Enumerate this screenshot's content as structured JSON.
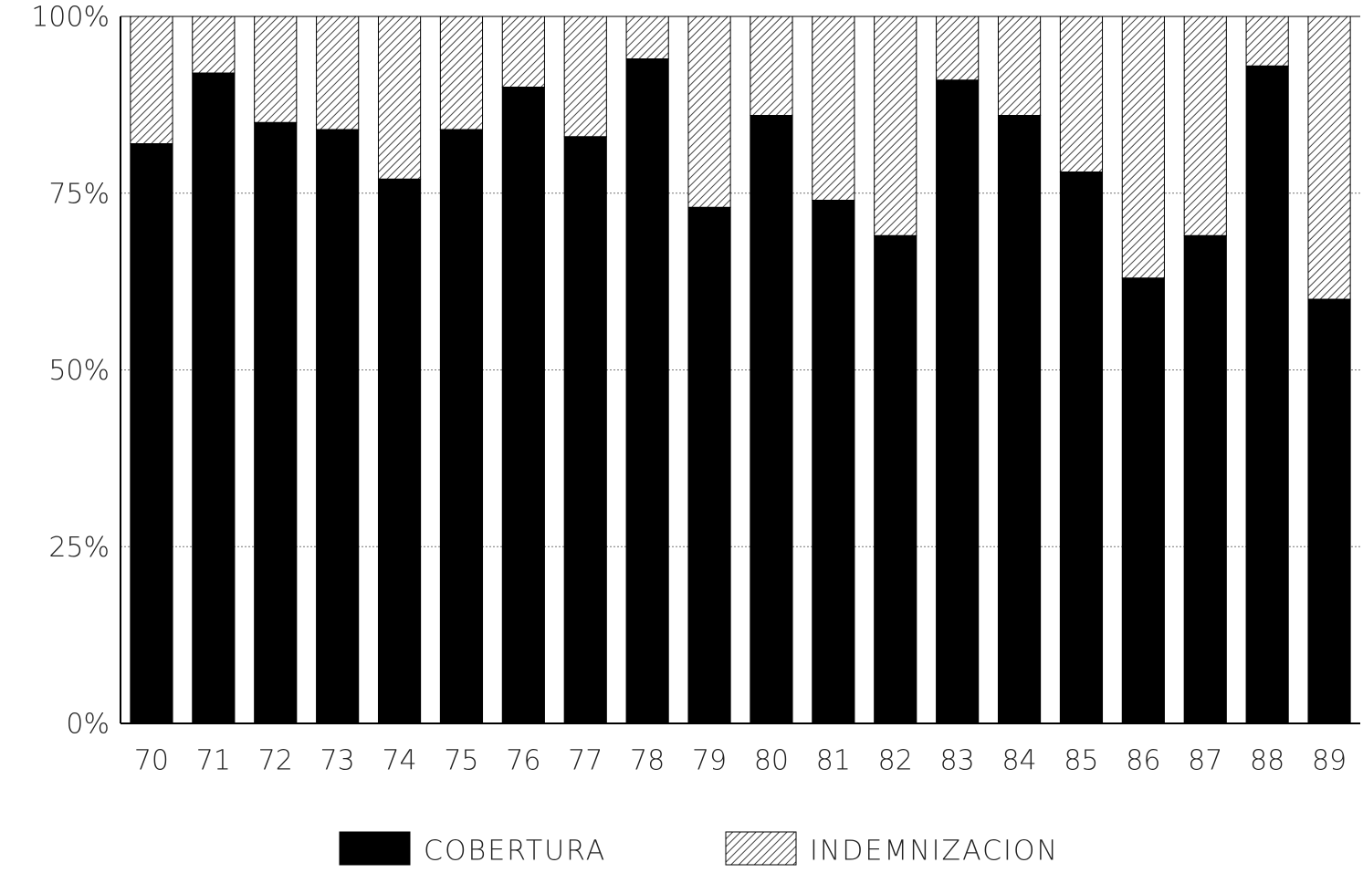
{
  "chart_data": {
    "type": "stacked_bar",
    "categories": [
      "70",
      "71",
      "72",
      "73",
      "74",
      "75",
      "76",
      "77",
      "78",
      "79",
      "80",
      "81",
      "82",
      "83",
      "84",
      "85",
      "86",
      "87",
      "88",
      "89"
    ],
    "series": [
      {
        "name": "COBERTURA",
        "color": "#000000",
        "pattern": "solid",
        "values": [
          82,
          92,
          85,
          84,
          77,
          84,
          90,
          83,
          94,
          73,
          86,
          74,
          69,
          91,
          86,
          78,
          63,
          69,
          93,
          60
        ]
      },
      {
        "name": "INDEMNIZACION",
        "color": "#444444",
        "pattern": "hatch",
        "values": [
          18,
          8,
          15,
          16,
          23,
          16,
          10,
          17,
          6,
          27,
          14,
          26,
          31,
          9,
          14,
          22,
          37,
          31,
          7,
          40
        ]
      }
    ],
    "ylim": [
      0,
      100
    ],
    "yticks": [
      {
        "value": 0,
        "label": "0%"
      },
      {
        "value": 25,
        "label": "25%"
      },
      {
        "value": 50,
        "label": "50%"
      },
      {
        "value": 75,
        "label": "75%"
      },
      {
        "value": 100,
        "label": "100%"
      }
    ],
    "grid": true,
    "legend": "bottom"
  }
}
